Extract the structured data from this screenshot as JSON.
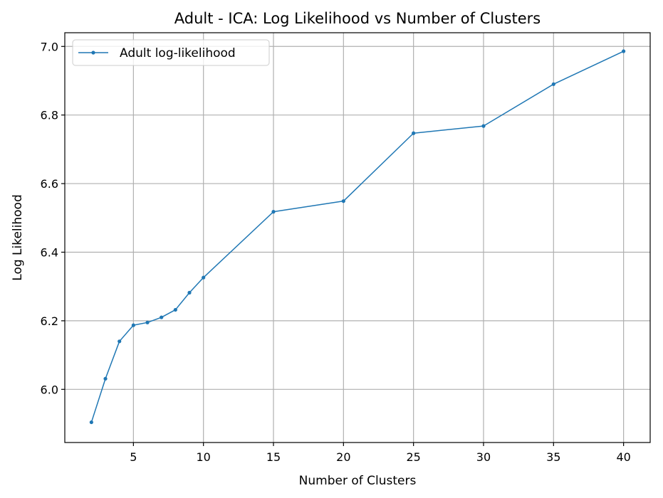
{
  "chart_data": {
    "type": "line",
    "title": "Adult - ICA: Log Likelihood vs Number of Clusters",
    "xlabel": "Number of Clusters",
    "ylabel": "Log Likelihood",
    "xlim": [
      0.1,
      41.9
    ],
    "ylim": [
      5.845,
      7.04
    ],
    "xticks": [
      5,
      10,
      15,
      20,
      25,
      30,
      35,
      40
    ],
    "yticks": [
      6.0,
      6.2,
      6.4,
      6.6,
      6.8,
      7.0
    ],
    "xtick_labels": [
      "5",
      "10",
      "15",
      "20",
      "25",
      "30",
      "35",
      "40"
    ],
    "ytick_labels": [
      "6.0",
      "6.2",
      "6.4",
      "6.6",
      "6.8",
      "7.0"
    ],
    "grid": true,
    "legend_position": "top-left",
    "series": [
      {
        "name": "Adult log-likelihood",
        "color": "#1f77b4",
        "x": [
          2,
          3,
          4,
          5,
          6,
          7,
          8,
          9,
          10,
          15,
          20,
          25,
          30,
          35,
          40
        ],
        "y": [
          5.904,
          6.031,
          6.14,
          6.187,
          6.195,
          6.21,
          6.232,
          6.282,
          6.326,
          6.518,
          6.549,
          6.747,
          6.768,
          6.89,
          6.986
        ]
      }
    ]
  }
}
